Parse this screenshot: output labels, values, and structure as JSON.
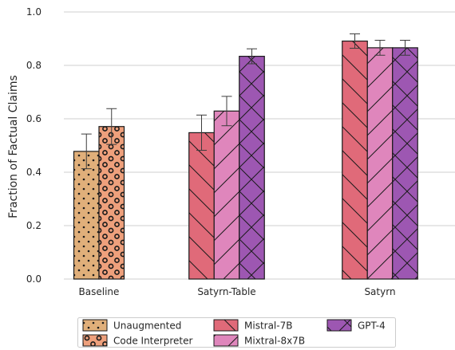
{
  "chart_data": {
    "type": "bar",
    "title": "",
    "xlabel": "",
    "ylabel": "Fraction of Factual Claims",
    "ylim": [
      0.0,
      1.0
    ],
    "yticks": [
      "0.0",
      "0.2",
      "0.4",
      "0.6",
      "0.8",
      "1.0"
    ],
    "grid": "horizontal",
    "legend_position": "bottom",
    "groups": [
      {
        "category": "Baseline",
        "bars": [
          {
            "series": "Unaugmented",
            "value": 0.478,
            "err": 0.065
          },
          {
            "series": "Code Interpreter",
            "value": 0.571,
            "err": 0.067
          }
        ]
      },
      {
        "category": "Satyrn-Table",
        "bars": [
          {
            "series": "Mistral-7B",
            "value": 0.548,
            "err": 0.066
          },
          {
            "series": "Mixtral-8x7B",
            "value": 0.629,
            "err": 0.055
          },
          {
            "series": "GPT-4",
            "value": 0.834,
            "err": 0.028
          }
        ]
      },
      {
        "category": "Satyrn",
        "bars": [
          {
            "series": "Mistral-7B",
            "value": 0.891,
            "err": 0.027
          },
          {
            "series": "Mixtral-8x7B",
            "value": 0.866,
            "err": 0.028
          },
          {
            "series": "GPT-4",
            "value": 0.866,
            "err": 0.028
          }
        ]
      }
    ],
    "series": [
      {
        "name": "Unaugmented",
        "color": "#e0af7a",
        "hatch": "dots"
      },
      {
        "name": "Code Interpreter",
        "color": "#eea07c",
        "hatch": "rings"
      },
      {
        "name": "Mistral-7B",
        "color": "#e06a79",
        "hatch": "backslash"
      },
      {
        "name": "Mixtral-8x7B",
        "color": "#df86bc",
        "hatch": "slash"
      },
      {
        "name": "GPT-4",
        "color": "#9d57b2",
        "hatch": "cross"
      }
    ],
    "legend_order": [
      "Unaugmented",
      "Code Interpreter",
      "Mistral-7B",
      "Mixtral-8x7B",
      "GPT-4"
    ]
  }
}
